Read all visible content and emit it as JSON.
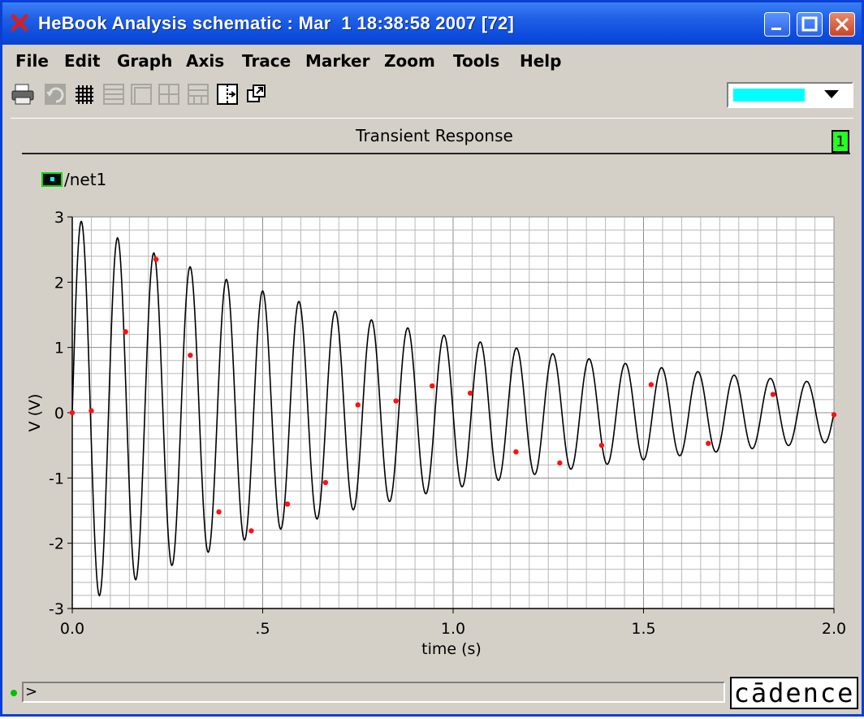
{
  "window": {
    "title": "HeBook Analysis schematic : Mar  1 18:38:58 2007 [72]",
    "app_icon": "app-x-icon"
  },
  "menus": [
    "File",
    "Edit",
    "Graph",
    "Axis",
    "Trace",
    "Marker",
    "Zoom",
    "Tools",
    "Help"
  ],
  "toolbar": {
    "icons": [
      "print-icon",
      "undo-icon",
      "grid-icon",
      "strip-icon",
      "overlay-icon",
      "layout-icon",
      "layout2-icon",
      "split-icon",
      "zoom-fit-icon"
    ],
    "color_selected": "#00ffff"
  },
  "plot": {
    "title": "Transient Response",
    "subwindow_badge": "1",
    "badge_color": "#22ff22"
  },
  "chart_data": {
    "type": "line",
    "title": "Transient Response",
    "xlabel": "time (s)",
    "ylabel": "V (V)",
    "xlim": [
      0,
      2
    ],
    "ylim": [
      -3,
      3
    ],
    "x_ticks": [
      "0.0",
      ".5",
      "1.0",
      "1.5",
      "2.0"
    ],
    "y_ticks": [
      "3",
      "2",
      "1",
      "0",
      "-1",
      "-2",
      "-3"
    ],
    "series": [
      {
        "name": "/net1",
        "color": "#000000",
        "function": "damped sine",
        "amplitude": 3.0,
        "frequency_hz": 10.5,
        "decay_per_s": 0.95,
        "x": [
          0.0,
          0.05,
          0.14,
          0.22,
          0.31,
          0.385,
          0.47,
          0.565,
          0.665,
          0.75,
          0.85,
          0.945,
          1.045,
          1.165,
          1.28,
          1.39,
          1.52,
          1.67,
          1.84,
          2.0
        ],
        "markers": [
          0.0,
          0.03,
          1.24,
          2.35,
          0.88,
          -1.52,
          -1.81,
          -1.4,
          -1.07,
          0.12,
          0.18,
          0.41,
          0.3,
          -0.6,
          -0.77,
          -0.5,
          0.43,
          -0.47,
          0.28,
          -0.03
        ]
      }
    ],
    "legend": "top-left",
    "grid": true
  },
  "status": {
    "prompt": ">",
    "logo": "cādence"
  }
}
